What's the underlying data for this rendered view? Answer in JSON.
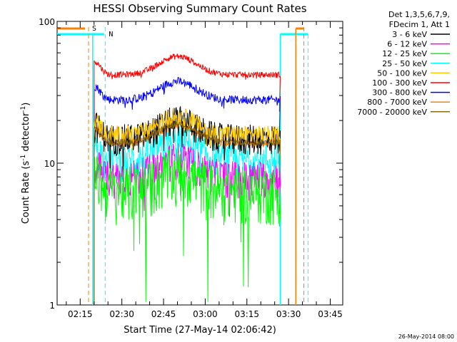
{
  "chart_data": {
    "type": "line",
    "title": "HESSI Observing Summary Count Rates",
    "xlabel": "Start Time (27-May-14 02:06:42)",
    "ylabel_main": "Count Rate (s",
    "ylabel_exp1": "-1",
    "ylabel_mid": " detector",
    "ylabel_exp2": "-1",
    "ylabel_end": ")",
    "y_scale": "log",
    "ylim": [
      1,
      100
    ],
    "xlim": [
      "02:06:42",
      "03:49:30"
    ],
    "x_ticks": [
      "02:15",
      "02:30",
      "02:45",
      "03:00",
      "03:15",
      "03:30",
      "03:45"
    ],
    "y_ticks": [
      "1",
      "10",
      "100"
    ],
    "legend_header": [
      "Det 1,3,5,6,7,9,",
      "FDecim 1, Att 1"
    ],
    "legend_position": "right",
    "timestamp": "26-May-2014 08:00",
    "series": [
      {
        "name": "3 - 6 keV",
        "color": "#000000",
        "base": 15,
        "noise": 0.25
      },
      {
        "name": "6 - 12 keV",
        "color": "#ff00ff",
        "base": 8,
        "noise": 0.3
      },
      {
        "name": "12 - 25 keV",
        "color": "#00ff00",
        "base": 6.5,
        "noise": 0.45
      },
      {
        "name": "25 - 50 keV",
        "color": "#00ffff",
        "base": 10.5,
        "noise": 0.3
      },
      {
        "name": "50 - 100 keV",
        "color": "#ffc800",
        "base": 16,
        "noise": 0.15
      },
      {
        "name": "100 - 300 keV",
        "color": "#ff0000",
        "base": 42,
        "noise": 0.05
      },
      {
        "name": "300 - 800 keV",
        "color": "#0000ff",
        "base": 28,
        "noise": 0.07
      },
      {
        "name": "800 - 7000 keV",
        "color": "#ff8000",
        "base": 14,
        "noise": 0.08
      },
      {
        "name": "7000 - 20000 keV",
        "color": "#8b6914",
        "base": 14,
        "noise": 0.05
      }
    ],
    "data_window": [
      "02:20",
      "03:27"
    ],
    "peak_time": "02:50",
    "markers": [
      {
        "label": "S",
        "color": "#ff8000",
        "time": "02:18",
        "style": "dashed"
      },
      {
        "label": "N",
        "color": "#00ffff",
        "time": "02:24",
        "style": "dashed"
      }
    ]
  }
}
